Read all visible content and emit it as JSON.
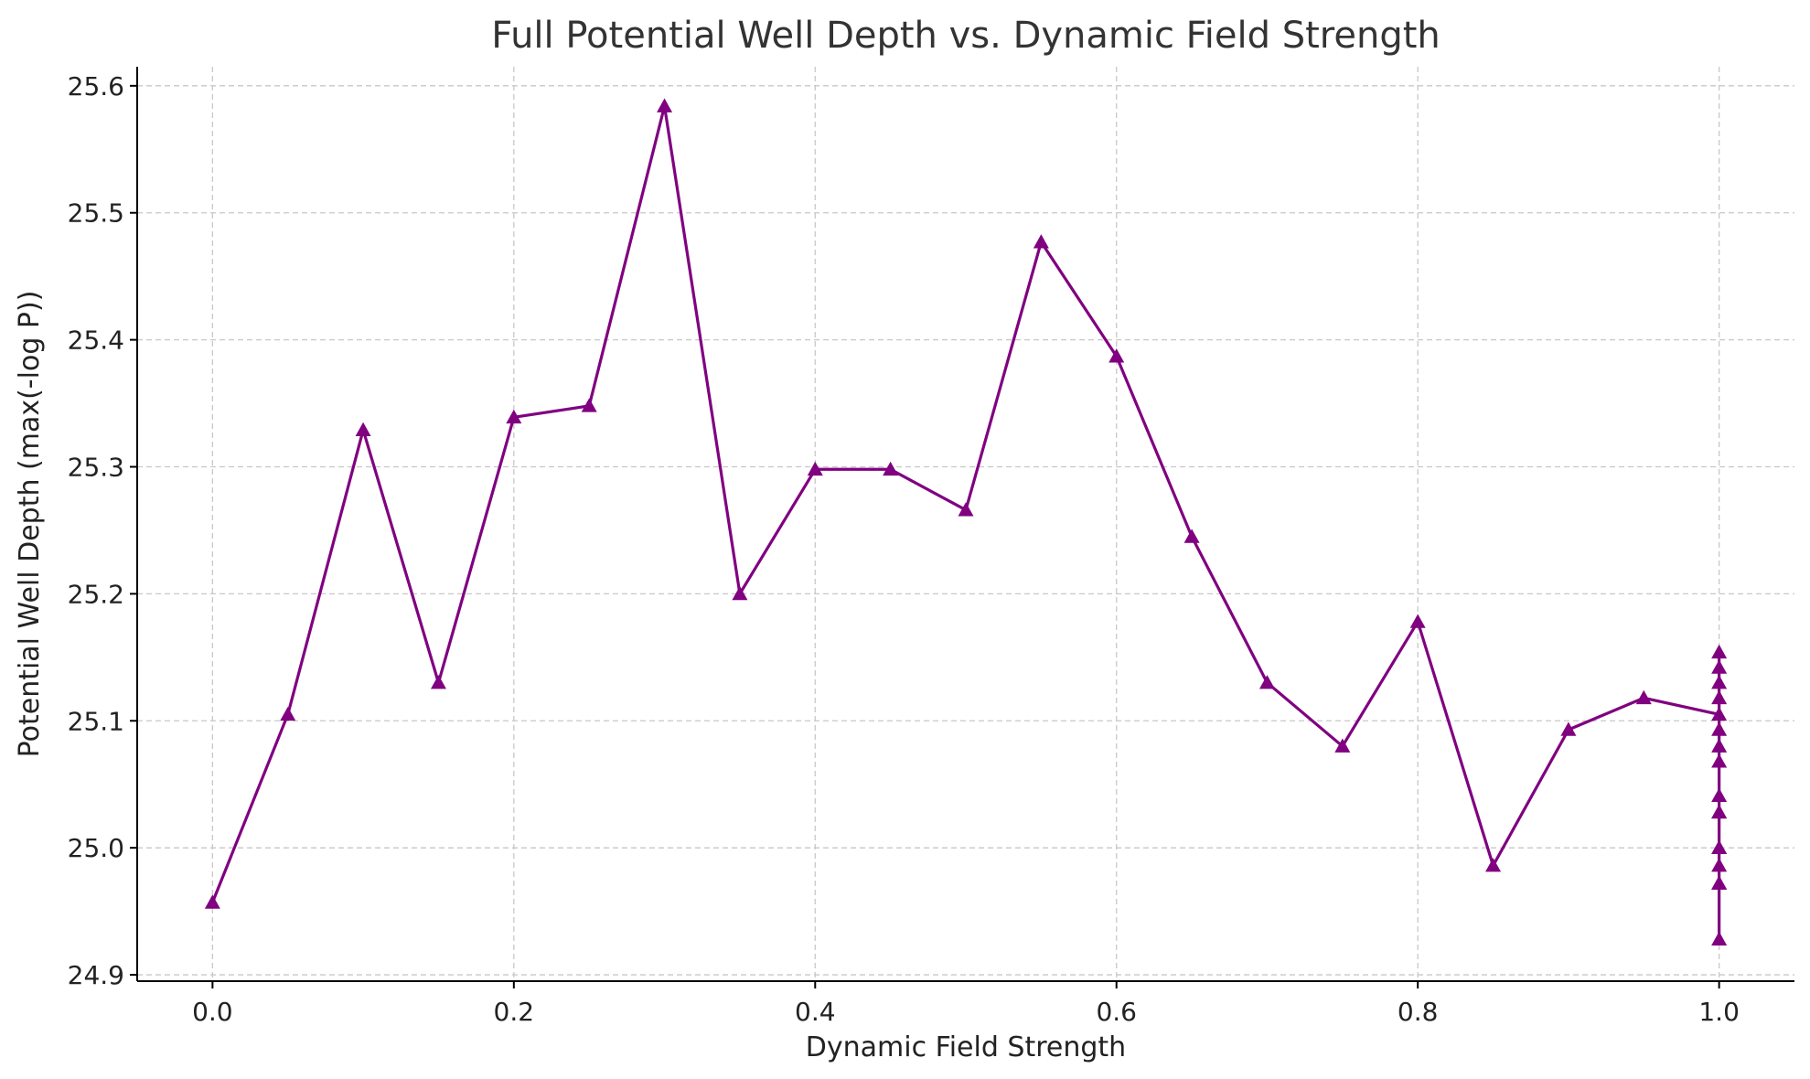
{
  "chart_data": {
    "type": "line",
    "title": "Full Potential Well Depth vs. Dynamic Field Strength",
    "xlabel": "Dynamic Field Strength",
    "ylabel": "Potential Well Depth (max(-log P))",
    "xlim": [
      -0.05,
      1.05
    ],
    "ylim": [
      24.895,
      25.615
    ],
    "xticks": [
      0.0,
      0.2,
      0.4,
      0.6,
      0.8,
      1.0
    ],
    "xtick_labels": [
      "0.0",
      "0.2",
      "0.4",
      "0.6",
      "0.8",
      "1.0"
    ],
    "yticks": [
      24.9,
      25.0,
      25.1,
      25.2,
      25.3,
      25.4,
      25.5,
      25.6
    ],
    "ytick_labels": [
      "24.9",
      "25.0",
      "25.1",
      "25.2",
      "25.3",
      "25.4",
      "25.5",
      "25.6"
    ],
    "grid": true,
    "marker": "triangle",
    "color": "#800080",
    "series": [
      {
        "x": [
          0.0,
          0.05,
          0.1,
          0.15,
          0.2,
          0.25,
          0.3,
          0.35,
          0.4,
          0.45,
          0.5,
          0.55,
          0.6,
          0.65,
          0.7,
          0.75,
          0.8,
          0.85,
          0.9,
          0.95,
          1.0,
          1.0,
          1.0,
          1.0,
          1.0,
          1.0,
          1.0,
          1.0,
          1.0,
          1.0,
          1.0,
          1.0,
          1.0,
          1.0,
          1.0,
          1.0,
          1.0
        ],
        "values": [
          24.957,
          25.105,
          25.329,
          25.13,
          25.339,
          25.348,
          25.584,
          25.2,
          25.298,
          25.298,
          25.266,
          25.477,
          25.387,
          25.245,
          25.13,
          25.08,
          25.178,
          24.986,
          25.093,
          25.118,
          25.105,
          25.154,
          25.142,
          25.13,
          25.118,
          25.093,
          25.08,
          25.068,
          25.041,
          25.028,
          25.0,
          24.986,
          24.972,
          24.928,
          24.972,
          25.0,
          25.028
        ]
      }
    ]
  }
}
